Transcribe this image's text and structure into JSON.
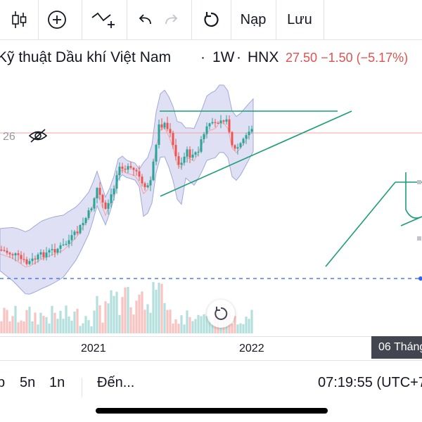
{
  "toolbar": {
    "items": [
      {
        "name": "candles-icon",
        "type": "icon"
      },
      {
        "name": "add-indicator-icon",
        "type": "icon"
      },
      {
        "name": "compare-icon",
        "type": "icon"
      },
      {
        "name": "undo-icon",
        "type": "icon"
      },
      {
        "name": "redo-icon",
        "type": "icon"
      },
      {
        "name": "reload-icon",
        "type": "icon"
      }
    ],
    "load_label": "Nạp",
    "save_label": "Lưu"
  },
  "symbol": {
    "name": "Kỹ thuật Dầu khí Việt Nam",
    "timeframe": "1W",
    "exchange": "HNX",
    "price": "27.50",
    "change": "−1.50",
    "change_pct": "(−5.17%)",
    "sep1": "·",
    "sep2": "·"
  },
  "price_scale_label": "26",
  "time_axis": {
    "labels": [
      "2021",
      "2022"
    ],
    "crosshair_date": "06 Tháng"
  },
  "bottom_bar": {
    "ranges": [
      "p",
      "5n",
      "1n"
    ],
    "goto_label": "Đến...",
    "clock": "07:19:55 (UTC+7"
  },
  "colors": {
    "up": "#26a69a",
    "down": "#ef5350",
    "band_fill": "#d6d6f0",
    "band_line": "#9fa8da",
    "trendline": "#1b9e77",
    "dashed": "#2962ff",
    "price_line": "#f4a3a3"
  }
}
